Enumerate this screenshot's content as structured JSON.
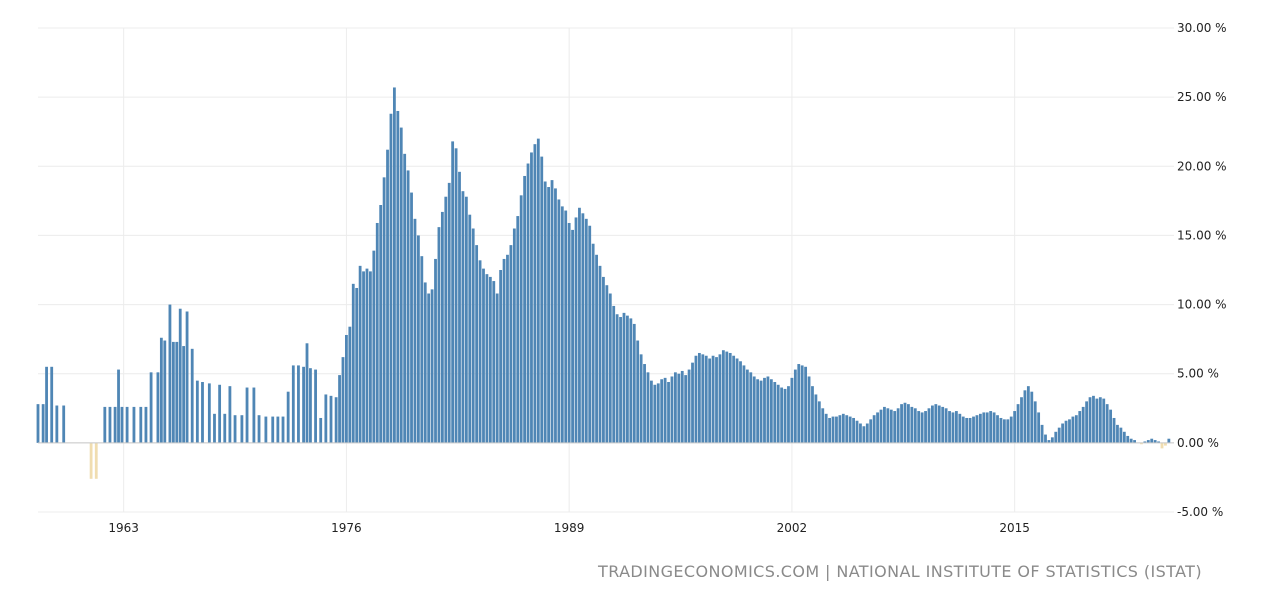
{
  "source_text": "TRADINGECONOMICS.COM | NATIONAL INSTITUTE OF STATISTICS (ISTAT)",
  "colors": {
    "positive": "#4f86b5",
    "negative": "#f0ddb0",
    "grid": "#ececec",
    "text": "#222222"
  },
  "chart_data": {
    "type": "bar",
    "title": "",
    "xlabel": "",
    "ylabel": "",
    "xlim": [
      1958,
      2024.3
    ],
    "ylim": [
      -5,
      30
    ],
    "x_ticks": [
      1963,
      1976,
      1989,
      2002,
      2015
    ],
    "x_tick_labels": [
      "1963",
      "1976",
      "1989",
      "2002",
      "2015"
    ],
    "y_ticks": [
      -5,
      0,
      5,
      10,
      15,
      20,
      25,
      30
    ],
    "y_tick_labels": [
      "-5.00 %",
      "0.00 %",
      "5.00 %",
      "10.00 %",
      "15.00 %",
      "20.00 %",
      "25.00 %",
      "30.00 %"
    ],
    "grid": true,
    "legend": "none",
    "series": [
      {
        "values": [
          [
            1958.0,
            2.8
          ],
          [
            1958.3,
            2.8
          ],
          [
            1958.5,
            5.5
          ],
          [
            1958.8,
            5.5
          ],
          [
            1959.1,
            2.7
          ],
          [
            1959.5,
            2.7
          ],
          [
            1959.9,
            0
          ],
          [
            1960.3,
            0
          ],
          [
            1961.1,
            -2.6
          ],
          [
            1961.4,
            -2.6
          ],
          [
            1961.9,
            2.6
          ],
          [
            1962.2,
            2.6
          ],
          [
            1962.5,
            2.6
          ],
          [
            1962.7,
            5.3
          ],
          [
            1962.9,
            2.6
          ],
          [
            1963.2,
            2.6
          ],
          [
            1963.6,
            2.6
          ],
          [
            1964.0,
            2.6
          ],
          [
            1964.3,
            2.6
          ],
          [
            1964.6,
            5.1
          ],
          [
            1965.0,
            5.1
          ],
          [
            1965.2,
            7.6
          ],
          [
            1965.4,
            7.4
          ],
          [
            1965.7,
            10.0
          ],
          [
            1965.9,
            7.3
          ],
          [
            1966.1,
            7.3
          ],
          [
            1966.3,
            9.7
          ],
          [
            1966.5,
            7.0
          ],
          [
            1966.7,
            9.5
          ],
          [
            1967.0,
            6.8
          ],
          [
            1967.3,
            4.5
          ],
          [
            1967.6,
            4.4
          ],
          [
            1968.0,
            4.3
          ],
          [
            1968.3,
            2.1
          ],
          [
            1968.6,
            4.2
          ],
          [
            1968.9,
            2.1
          ],
          [
            1969.2,
            4.1
          ],
          [
            1969.5,
            2.0
          ],
          [
            1969.9,
            2.0
          ],
          [
            1970.2,
            4.0
          ],
          [
            1970.6,
            4.0
          ],
          [
            1970.9,
            2.0
          ],
          [
            1971.3,
            1.9
          ],
          [
            1971.7,
            1.9
          ],
          [
            1972.0,
            1.9
          ],
          [
            1972.3,
            1.9
          ],
          [
            1972.6,
            3.7
          ],
          [
            1972.9,
            5.6
          ],
          [
            1973.2,
            5.6
          ],
          [
            1973.5,
            5.5
          ],
          [
            1973.7,
            7.2
          ],
          [
            1973.9,
            5.4
          ],
          [
            1974.2,
            5.3
          ],
          [
            1974.5,
            1.8
          ],
          [
            1974.8,
            3.5
          ],
          [
            1975.1,
            3.4
          ],
          [
            1975.4,
            3.3
          ],
          [
            1975.6,
            4.9
          ],
          [
            1975.8,
            6.2
          ],
          [
            1976.0,
            7.8
          ],
          [
            1976.2,
            8.4
          ],
          [
            1976.4,
            11.5
          ],
          [
            1976.6,
            11.2
          ],
          [
            1976.8,
            12.8
          ],
          [
            1977.0,
            12.4
          ],
          [
            1977.2,
            12.6
          ],
          [
            1977.4,
            12.4
          ],
          [
            1977.6,
            13.9
          ],
          [
            1977.8,
            15.9
          ],
          [
            1978.0,
            17.2
          ],
          [
            1978.2,
            19.2
          ],
          [
            1978.4,
            21.2
          ],
          [
            1978.6,
            23.8
          ],
          [
            1978.8,
            25.7
          ],
          [
            1979.0,
            24.0
          ],
          [
            1979.2,
            22.8
          ],
          [
            1979.4,
            20.9
          ],
          [
            1979.6,
            19.7
          ],
          [
            1979.8,
            18.1
          ],
          [
            1980.0,
            16.2
          ],
          [
            1980.2,
            15.0
          ],
          [
            1980.4,
            13.5
          ],
          [
            1980.6,
            11.6
          ],
          [
            1980.8,
            10.8
          ],
          [
            1981.0,
            11.1
          ],
          [
            1981.2,
            13.3
          ],
          [
            1981.4,
            15.6
          ],
          [
            1981.6,
            16.7
          ],
          [
            1981.8,
            17.8
          ],
          [
            1982.0,
            18.8
          ],
          [
            1982.2,
            21.8
          ],
          [
            1982.4,
            21.3
          ],
          [
            1982.6,
            19.6
          ],
          [
            1982.8,
            18.2
          ],
          [
            1983.0,
            17.8
          ],
          [
            1983.2,
            16.5
          ],
          [
            1983.4,
            15.5
          ],
          [
            1983.6,
            14.3
          ],
          [
            1983.8,
            13.2
          ],
          [
            1984.0,
            12.6
          ],
          [
            1984.2,
            12.2
          ],
          [
            1984.4,
            12.0
          ],
          [
            1984.6,
            11.7
          ],
          [
            1984.8,
            10.8
          ],
          [
            1985.0,
            12.5
          ],
          [
            1985.2,
            13.3
          ],
          [
            1985.4,
            13.6
          ],
          [
            1985.6,
            14.3
          ],
          [
            1985.8,
            15.5
          ],
          [
            1986.0,
            16.4
          ],
          [
            1986.2,
            17.9
          ],
          [
            1986.4,
            19.3
          ],
          [
            1986.6,
            20.2
          ],
          [
            1986.8,
            21.0
          ],
          [
            1987.0,
            21.6
          ],
          [
            1987.2,
            22.0
          ],
          [
            1987.4,
            20.7
          ],
          [
            1987.6,
            18.9
          ],
          [
            1987.8,
            18.5
          ],
          [
            1988.0,
            19.0
          ],
          [
            1988.2,
            18.4
          ],
          [
            1988.4,
            17.6
          ],
          [
            1988.6,
            17.1
          ],
          [
            1988.8,
            16.8
          ],
          [
            1989.0,
            15.9
          ],
          [
            1989.2,
            15.4
          ],
          [
            1989.4,
            16.3
          ],
          [
            1989.6,
            17.0
          ],
          [
            1989.8,
            16.6
          ],
          [
            1990.0,
            16.2
          ],
          [
            1990.2,
            15.7
          ],
          [
            1990.4,
            14.4
          ],
          [
            1990.6,
            13.6
          ],
          [
            1990.8,
            12.8
          ],
          [
            1991.0,
            12.0
          ],
          [
            1991.2,
            11.4
          ],
          [
            1991.4,
            10.8
          ],
          [
            1991.6,
            9.9
          ],
          [
            1991.8,
            9.3
          ],
          [
            1992.0,
            9.1
          ],
          [
            1992.2,
            9.4
          ],
          [
            1992.4,
            9.2
          ],
          [
            1992.6,
            9.0
          ],
          [
            1992.8,
            8.6
          ],
          [
            1993.0,
            7.4
          ],
          [
            1993.2,
            6.4
          ],
          [
            1993.4,
            5.7
          ],
          [
            1993.6,
            5.1
          ],
          [
            1993.8,
            4.5
          ],
          [
            1994.0,
            4.2
          ],
          [
            1994.2,
            4.3
          ],
          [
            1994.4,
            4.6
          ],
          [
            1994.6,
            4.7
          ],
          [
            1994.8,
            4.4
          ],
          [
            1995.0,
            4.8
          ],
          [
            1995.2,
            5.1
          ],
          [
            1995.4,
            5.0
          ],
          [
            1995.6,
            5.2
          ],
          [
            1995.8,
            4.9
          ],
          [
            1996.0,
            5.3
          ],
          [
            1996.2,
            5.8
          ],
          [
            1996.4,
            6.3
          ],
          [
            1996.6,
            6.5
          ],
          [
            1996.8,
            6.4
          ],
          [
            1997.0,
            6.3
          ],
          [
            1997.2,
            6.1
          ],
          [
            1997.4,
            6.3
          ],
          [
            1997.6,
            6.2
          ],
          [
            1997.8,
            6.4
          ],
          [
            1998.0,
            6.7
          ],
          [
            1998.2,
            6.6
          ],
          [
            1998.4,
            6.5
          ],
          [
            1998.6,
            6.3
          ],
          [
            1998.8,
            6.1
          ],
          [
            1999.0,
            5.9
          ],
          [
            1999.2,
            5.6
          ],
          [
            1999.4,
            5.3
          ],
          [
            1999.6,
            5.1
          ],
          [
            1999.8,
            4.8
          ],
          [
            2000.0,
            4.6
          ],
          [
            2000.2,
            4.5
          ],
          [
            2000.4,
            4.7
          ],
          [
            2000.6,
            4.8
          ],
          [
            2000.8,
            4.6
          ],
          [
            2001.0,
            4.4
          ],
          [
            2001.2,
            4.2
          ],
          [
            2001.4,
            4.0
          ],
          [
            2001.6,
            3.9
          ],
          [
            2001.8,
            4.1
          ],
          [
            2002.0,
            4.7
          ],
          [
            2002.2,
            5.3
          ],
          [
            2002.4,
            5.7
          ],
          [
            2002.6,
            5.6
          ],
          [
            2002.8,
            5.5
          ],
          [
            2003.0,
            4.8
          ],
          [
            2003.2,
            4.1
          ],
          [
            2003.4,
            3.5
          ],
          [
            2003.6,
            3.0
          ],
          [
            2003.8,
            2.5
          ],
          [
            2004.0,
            2.1
          ],
          [
            2004.2,
            1.8
          ],
          [
            2004.4,
            1.9
          ],
          [
            2004.6,
            1.9
          ],
          [
            2004.8,
            2.0
          ],
          [
            2005.0,
            2.1
          ],
          [
            2005.2,
            2.0
          ],
          [
            2005.4,
            1.9
          ],
          [
            2005.6,
            1.8
          ],
          [
            2005.8,
            1.6
          ],
          [
            2006.0,
            1.4
          ],
          [
            2006.2,
            1.2
          ],
          [
            2006.4,
            1.4
          ],
          [
            2006.6,
            1.7
          ],
          [
            2006.8,
            2.0
          ],
          [
            2007.0,
            2.2
          ],
          [
            2007.2,
            2.4
          ],
          [
            2007.4,
            2.6
          ],
          [
            2007.6,
            2.5
          ],
          [
            2007.8,
            2.4
          ],
          [
            2008.0,
            2.3
          ],
          [
            2008.2,
            2.5
          ],
          [
            2008.4,
            2.8
          ],
          [
            2008.6,
            2.9
          ],
          [
            2008.8,
            2.8
          ],
          [
            2009.0,
            2.6
          ],
          [
            2009.2,
            2.5
          ],
          [
            2009.4,
            2.3
          ],
          [
            2009.6,
            2.2
          ],
          [
            2009.8,
            2.3
          ],
          [
            2010.0,
            2.5
          ],
          [
            2010.2,
            2.7
          ],
          [
            2010.4,
            2.8
          ],
          [
            2010.6,
            2.7
          ],
          [
            2010.8,
            2.6
          ],
          [
            2011.0,
            2.5
          ],
          [
            2011.2,
            2.3
          ],
          [
            2011.4,
            2.2
          ],
          [
            2011.6,
            2.3
          ],
          [
            2011.8,
            2.1
          ],
          [
            2012.0,
            1.9
          ],
          [
            2012.2,
            1.8
          ],
          [
            2012.4,
            1.8
          ],
          [
            2012.6,
            1.9
          ],
          [
            2012.8,
            2.0
          ],
          [
            2013.0,
            2.1
          ],
          [
            2013.2,
            2.2
          ],
          [
            2013.4,
            2.2
          ],
          [
            2013.6,
            2.3
          ],
          [
            2013.8,
            2.2
          ],
          [
            2014.0,
            2.0
          ],
          [
            2014.2,
            1.8
          ],
          [
            2014.4,
            1.7
          ],
          [
            2014.6,
            1.7
          ],
          [
            2014.8,
            1.9
          ],
          [
            2015.0,
            2.3
          ],
          [
            2015.2,
            2.8
          ],
          [
            2015.4,
            3.3
          ],
          [
            2015.6,
            3.8
          ],
          [
            2015.8,
            4.1
          ],
          [
            2016.0,
            3.7
          ],
          [
            2016.2,
            3.0
          ],
          [
            2016.4,
            2.2
          ],
          [
            2016.6,
            1.3
          ],
          [
            2016.8,
            0.6
          ],
          [
            2017.0,
            0.2
          ],
          [
            2017.2,
            0.4
          ],
          [
            2017.4,
            0.8
          ],
          [
            2017.6,
            1.1
          ],
          [
            2017.8,
            1.4
          ],
          [
            2018.0,
            1.6
          ],
          [
            2018.2,
            1.7
          ],
          [
            2018.4,
            1.9
          ],
          [
            2018.6,
            2.0
          ],
          [
            2018.8,
            2.3
          ],
          [
            2019.0,
            2.6
          ],
          [
            2019.2,
            3.0
          ],
          [
            2019.4,
            3.3
          ],
          [
            2019.6,
            3.4
          ],
          [
            2019.8,
            3.2
          ],
          [
            2020.0,
            3.3
          ],
          [
            2020.2,
            3.2
          ],
          [
            2020.4,
            2.8
          ],
          [
            2020.6,
            2.4
          ],
          [
            2020.8,
            1.8
          ],
          [
            2021.0,
            1.3
          ],
          [
            2021.2,
            1.1
          ],
          [
            2021.4,
            0.8
          ],
          [
            2021.6,
            0.5
          ],
          [
            2021.8,
            0.3
          ],
          [
            2022.0,
            0.2
          ],
          [
            2022.2,
            0.0
          ],
          [
            2022.4,
            -0.1
          ],
          [
            2022.6,
            0.1
          ],
          [
            2022.8,
            0.2
          ],
          [
            2023.0,
            0.3
          ],
          [
            2023.2,
            0.2
          ],
          [
            2023.4,
            0.1
          ],
          [
            2023.6,
            -0.4
          ],
          [
            2023.8,
            -0.2
          ],
          [
            2024.0,
            0.3
          ]
        ]
      }
    ]
  }
}
